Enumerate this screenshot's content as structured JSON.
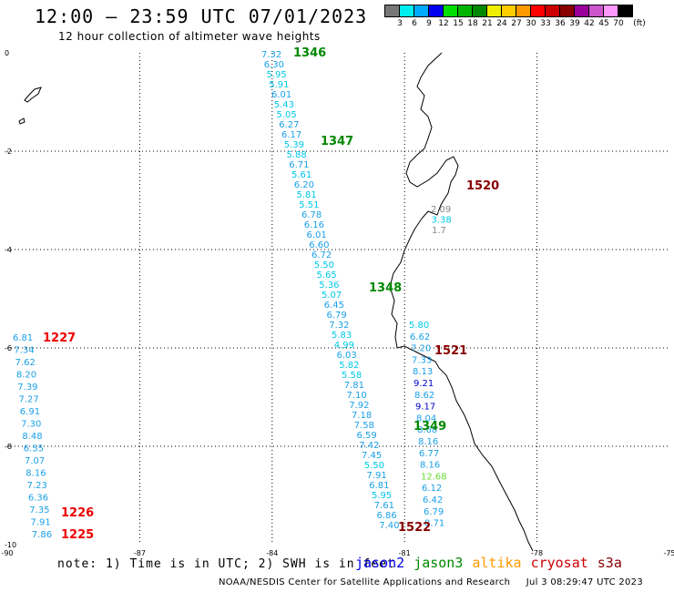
{
  "header": {
    "title": "12:00 – 23:59 UTC 07/01/2023",
    "subtitle": "12 hour collection of altimeter wave heights"
  },
  "colorbar": {
    "unit": "(ft)",
    "labels": [
      "3",
      "6",
      "9",
      "12",
      "15",
      "18",
      "21",
      "24",
      "27",
      "30",
      "33",
      "36",
      "39",
      "42",
      "45",
      "70"
    ],
    "colors": [
      "#777777",
      "#00eeee",
      "#00aaff",
      "#0000ee",
      "#00dd00",
      "#00b400",
      "#008800",
      "#eeee00",
      "#ffcc00",
      "#ff9900",
      "#ff0000",
      "#cc0000",
      "#880000",
      "#990099",
      "#cc55cc",
      "#ff99ff",
      "#000000"
    ]
  },
  "axes": {
    "lon_labels": [
      "-90",
      "-87",
      "-84",
      "-81",
      "-78",
      "-75"
    ],
    "lat_labels": [
      "0",
      "-2",
      "-4",
      "-6",
      "-8",
      "-10"
    ]
  },
  "tracks": [
    {
      "label": "1346",
      "color": "#008800"
    },
    {
      "label": "1347",
      "color": "#008800"
    },
    {
      "label": "1348",
      "color": "#008800"
    },
    {
      "label": "1349",
      "color": "#008800"
    },
    {
      "label": "1520",
      "color": "#880000"
    },
    {
      "label": "1521",
      "color": "#880000"
    },
    {
      "label": "1522",
      "color": "#880000"
    },
    {
      "label": "1227",
      "color": "#ee0000"
    },
    {
      "label": "1226",
      "color": "#ee0000"
    },
    {
      "label": "1225",
      "color": "#ee0000"
    }
  ],
  "wave_heights": {
    "jason3_west": [
      "7.32",
      "6.30",
      "5.95",
      "5.91",
      "6.01",
      "5.43",
      "5.05",
      "6.27",
      "6.17",
      "5.39",
      "5.88",
      "6.71",
      "5.61",
      "6.20",
      "5.81",
      "5.51",
      "6.78",
      "6.16",
      "6.01",
      "6.60",
      "6.72",
      "5.50",
      "5.65",
      "5.36",
      "5.07",
      "6.45",
      "6.79",
      "7.32",
      "5.83",
      "4.99",
      "6.03",
      "5.82",
      "5.58",
      "7.81",
      "7.10",
      "7.92",
      "7.18",
      "7.58",
      "6.59",
      "7.42",
      "7.45",
      "5.50",
      "7.91",
      "6.81",
      "5.95",
      "7.61",
      "6.86",
      "7.40"
    ],
    "near_coast": [
      "5.80",
      "6.62",
      "7.20",
      "7.33",
      "8.13",
      "9.21",
      "8.62",
      "9.17",
      "8.04",
      "8.68",
      "8.16",
      "6.77",
      "8.16",
      "12.68",
      "6.12",
      "6.42",
      "6.79",
      "8.71"
    ],
    "s3a_coast": [
      "2.09",
      "3.38",
      "1.7"
    ],
    "cryosat_west": [
      "6.81",
      "7.34",
      "7.62",
      "8.20",
      "7.39",
      "7.27",
      "6.91",
      "7.30",
      "8.48",
      "6.55",
      "7.07",
      "8.16",
      "7.23",
      "6.36",
      "7.35",
      "7.91",
      "7.86"
    ]
  },
  "notes": {
    "note_text": "note: 1) Time is in UTC; 2) SWH is in feet",
    "missions": [
      {
        "name": "jason2",
        "color": "#0000ee"
      },
      {
        "name": "jason3",
        "color": "#008800"
      },
      {
        "name": "altika",
        "color": "#ff9900"
      },
      {
        "name": "cryosat",
        "color": "#cc0000"
      },
      {
        "name": "s3a",
        "color": "#880000"
      }
    ]
  },
  "footer": {
    "credit": "NOAA/NESDIS Center for Satellite Applications and Research",
    "timestamp": "Jul  3 08:29:47 UTC 2023"
  }
}
